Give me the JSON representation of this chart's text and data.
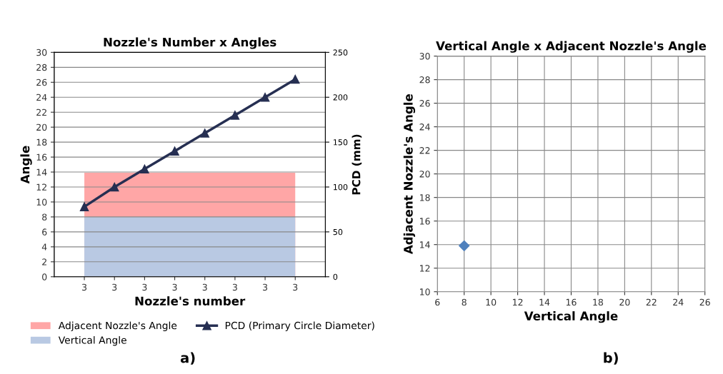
{
  "chart_data": [
    {
      "type": "area",
      "title": "Nozzle's Number x Angles",
      "xlabel": "Nozzle's number",
      "ylabel": "Angle",
      "y2label": "PCD (mm)",
      "categories": [
        "3",
        "3",
        "3",
        "3",
        "3",
        "3",
        "3",
        "3"
      ],
      "series": [
        {
          "name": "Adjacent Nozzle's Angle",
          "type": "area",
          "color": "#ffa6a6",
          "values": [
            13.9,
            13.9,
            13.9,
            13.9,
            13.9,
            13.9,
            13.9,
            13.9
          ]
        },
        {
          "name": "Vertical Angle",
          "type": "area",
          "color": "#b9c9e3",
          "values": [
            8,
            8,
            8,
            8,
            8,
            8,
            8,
            8
          ]
        },
        {
          "name": "PCD (Primary Circle Diameter)",
          "type": "line",
          "axis": "y2",
          "color": "#262f52",
          "marker": "triangle",
          "values": [
            78,
            100,
            120,
            140,
            160,
            180,
            200,
            220
          ]
        }
      ],
      "ylim": [
        0,
        30
      ],
      "yticks": [
        0,
        2,
        4,
        6,
        8,
        10,
        12,
        14,
        16,
        18,
        20,
        22,
        24,
        26,
        28,
        30
      ],
      "y2lim": [
        0,
        250
      ],
      "y2ticks": [
        0,
        50,
        100,
        150,
        200,
        250
      ],
      "grid": true,
      "legend": "bottom",
      "annotations": [
        "a)"
      ]
    },
    {
      "type": "scatter",
      "title": "Vertical Angle x Adjacent Nozzle's Angle",
      "xlabel": "Vertical Angle",
      "ylabel": "Adjacent Nozzle's Angle",
      "x": [
        8
      ],
      "values": [
        13.9
      ],
      "color": "#4f81bd",
      "marker": "diamond",
      "xlim": [
        6,
        26
      ],
      "xticks": [
        6,
        8,
        10,
        12,
        14,
        16,
        18,
        20,
        22,
        24,
        26
      ],
      "ylim": [
        10,
        30
      ],
      "yticks": [
        10,
        12,
        14,
        16,
        18,
        20,
        22,
        24,
        26,
        28,
        30
      ],
      "grid": true,
      "annotations": [
        "b)"
      ]
    }
  ]
}
